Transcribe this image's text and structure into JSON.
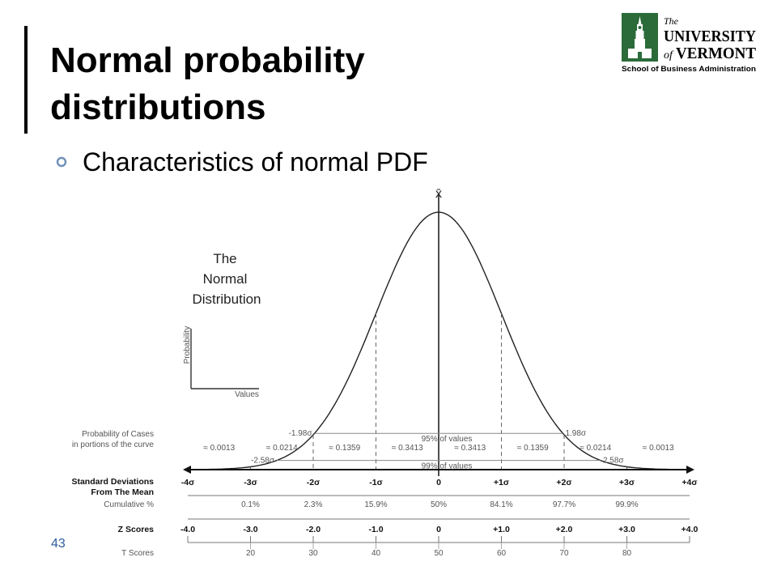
{
  "slide": {
    "title_lines": [
      "Normal probability",
      "distributions"
    ],
    "bullet": "Characteristics of normal PDF",
    "page_number": "43"
  },
  "logo": {
    "line1": "The",
    "line2": "UNIVERSITY",
    "line3a": "of",
    "line3b": "VERMONT",
    "line4": "School of Business Administration",
    "color": "#2b6b3a"
  },
  "chart_data": {
    "type": "diagram",
    "title_lines": [
      "The",
      "Normal",
      "Distribution"
    ],
    "inset": {
      "ylabel": "Probability",
      "xlabel": "Values"
    },
    "mean_label": "x̄",
    "bands": [
      {
        "label": "95% of values",
        "left": "-1.98σ",
        "right": "1.98σ",
        "sigma": 1.98
      },
      {
        "label": "99% of values",
        "left": "-2.58σ",
        "right": "2.58σ",
        "sigma": 2.58
      }
    ],
    "probability_caption": [
      "Probability of Cases",
      "in portions of the curve"
    ],
    "probabilities": [
      "≈ 0.0013",
      "≈ 0.0214",
      "≈ 0.1359",
      "≈ 0.3413",
      "≈ 0.3413",
      "≈ 0.1359",
      "≈ 0.0214",
      "≈ 0.0013"
    ],
    "rows": [
      {
        "name": "sd",
        "label_lines": [
          "Standard Deviations",
          "From The Mean"
        ],
        "values": [
          "-4σ",
          "-3σ",
          "-2σ",
          "-1σ",
          "0",
          "+1σ",
          "+2σ",
          "+3σ",
          "+4σ"
        ]
      },
      {
        "name": "cumulative",
        "label_lines": [
          "Cumulative %"
        ],
        "values": [
          "",
          "0.1%",
          "2.3%",
          "15.9%",
          "50%",
          "84.1%",
          "97.7%",
          "99.9%",
          ""
        ]
      },
      {
        "name": "z",
        "label_lines": [
          "Z Scores"
        ],
        "values": [
          "-4.0",
          "-3.0",
          "-2.0",
          "-1.0",
          "0",
          "+1.0",
          "+2.0",
          "+3.0",
          "+4.0"
        ]
      },
      {
        "name": "t",
        "label_lines": [
          "T Scores"
        ],
        "values": [
          "",
          "20",
          "30",
          "40",
          "50",
          "60",
          "70",
          "80",
          ""
        ]
      }
    ]
  }
}
